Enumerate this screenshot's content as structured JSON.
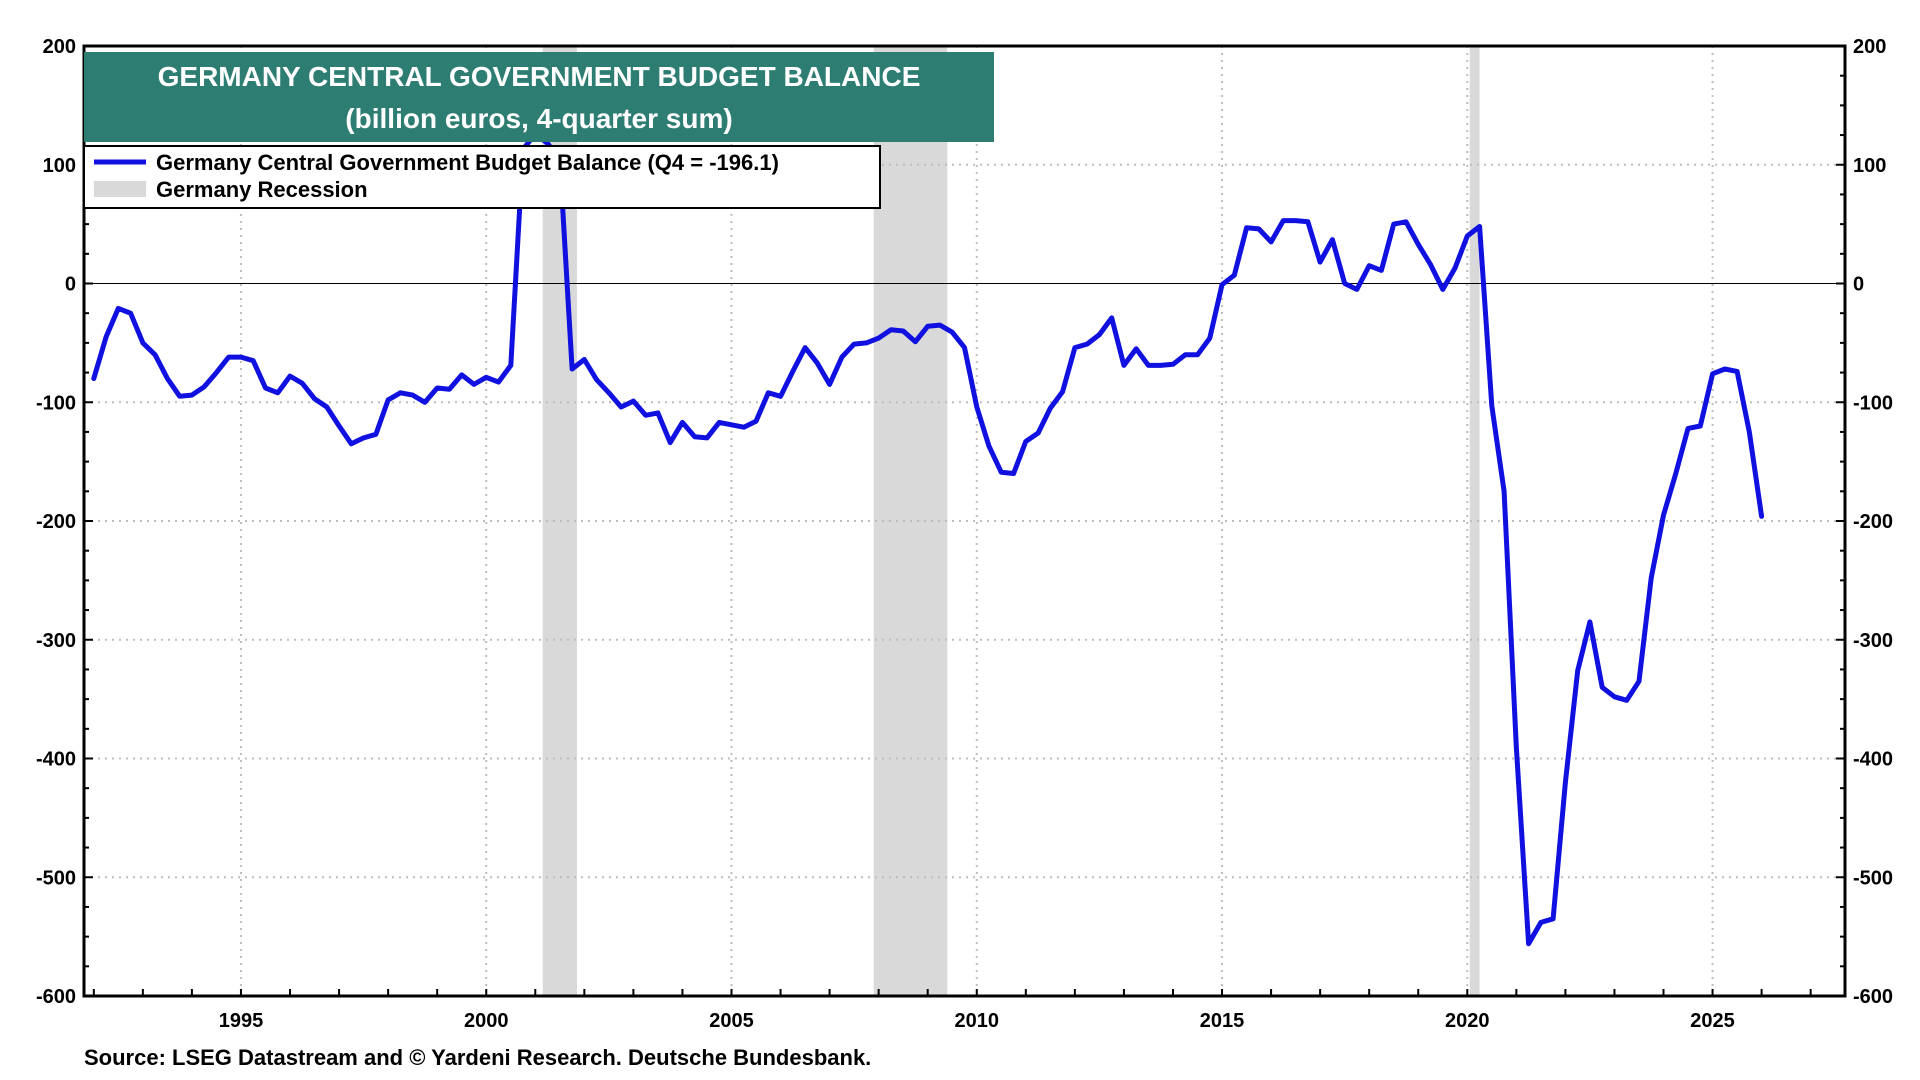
{
  "chart_data": {
    "type": "line",
    "title": "GERMANY CENTRAL GOVERNMENT BUDGET BALANCE",
    "subtitle": "(billion euros, 4-quarter sum)",
    "source": "Source: LSEG Datastream and © Yardeni Research. Deutsche Bundesbank.",
    "ylim": [
      -600,
      200
    ],
    "xlim": [
      1991.8,
      2027.7
    ],
    "y_ticks": [
      "200",
      "100",
      "0",
      "-100",
      "-200",
      "-300",
      "-400",
      "-500",
      "-600"
    ],
    "x_ticks": [
      "1995",
      "2000",
      "2005",
      "2010",
      "2015",
      "2020",
      "2025"
    ],
    "grid": true,
    "legend_position": "top-left",
    "colors": {
      "line": "#1010e0",
      "recession": "#d9d9d9",
      "title_bg": "#2e7d72"
    },
    "legend": {
      "series_label": "Germany Central Government Budget Balance (Q4 = -196.1)",
      "recession_label": "Germany Recession"
    },
    "recessions": [
      [
        2001.15,
        2001.85
      ],
      [
        2007.9,
        2009.4
      ],
      [
        2020.05,
        2020.25
      ]
    ],
    "series": [
      {
        "name": "Germany Central Government Budget Balance (Q4 = -196.1)",
        "x": [
          1992.0,
          1992.25,
          1992.5,
          1992.75,
          1993.0,
          1993.25,
          1993.5,
          1993.75,
          1994.0,
          1994.25,
          1994.5,
          1994.75,
          1995.0,
          1995.25,
          1995.5,
          1995.75,
          1996.0,
          1996.25,
          1996.5,
          1996.75,
          1997.0,
          1997.25,
          1997.5,
          1997.75,
          1998.0,
          1998.25,
          1998.5,
          1998.75,
          1999.0,
          1999.25,
          1999.5,
          1999.75,
          2000.0,
          2000.25,
          2000.5,
          2000.75,
          2001.0,
          2001.25,
          2001.5,
          2001.75,
          2002.0,
          2002.25,
          2002.5,
          2002.75,
          2003.0,
          2003.25,
          2003.5,
          2003.75,
          2004.0,
          2004.25,
          2004.5,
          2004.75,
          2005.0,
          2005.25,
          2005.5,
          2005.75,
          2006.0,
          2006.25,
          2006.5,
          2006.75,
          2007.0,
          2007.25,
          2007.5,
          2007.75,
          2008.0,
          2008.25,
          2008.5,
          2008.75,
          2009.0,
          2009.25,
          2009.5,
          2009.75,
          2010.0,
          2010.25,
          2010.5,
          2010.75,
          2011.0,
          2011.25,
          2011.5,
          2011.75,
          2012.0,
          2012.25,
          2012.5,
          2012.75,
          2013.0,
          2013.25,
          2013.5,
          2013.75,
          2014.0,
          2014.25,
          2014.5,
          2014.75,
          2015.0,
          2015.25,
          2015.5,
          2015.75,
          2016.0,
          2016.25,
          2016.5,
          2016.75,
          2017.0,
          2017.25,
          2017.5,
          2017.75,
          2018.0,
          2018.25,
          2018.5,
          2018.75,
          2019.0,
          2019.25,
          2019.5,
          2019.75,
          2020.0,
          2020.25,
          2020.5,
          2020.75,
          2021.0,
          2021.25,
          2021.5,
          2021.75,
          2022.0,
          2022.25,
          2022.5,
          2022.75,
          2023.0,
          2023.25,
          2023.5,
          2023.75,
          2024.0,
          2024.25,
          2024.5,
          2024.75,
          2025.0,
          2025.25,
          2025.5,
          2025.75,
          2026.0
        ],
        "values": [
          -80,
          -45,
          -21,
          -25,
          -50,
          -60,
          -80,
          -95,
          -94,
          -87,
          -75,
          -62,
          -62,
          -65,
          -88,
          -92,
          -78,
          -84,
          -97,
          -104,
          -120,
          -135,
          -130,
          -127,
          -98,
          -92,
          -94,
          -100,
          -88,
          -89,
          -77,
          -85,
          -79,
          -83,
          -69,
          113,
          126,
          118,
          105,
          -72,
          -64,
          -81,
          -92,
          -104,
          -99,
          -111,
          -109,
          -134,
          -117,
          -129,
          -130,
          -117,
          -119,
          -121,
          -116,
          -92,
          -95,
          -74,
          -54,
          -67,
          -85,
          -62,
          -51,
          -50,
          -46,
          -39,
          -40,
          -49,
          -36,
          -35,
          -41,
          -54,
          -104,
          -137,
          -159,
          -160,
          -133,
          -126,
          -105,
          -91,
          -54,
          -51,
          -43,
          -29,
          -69,
          -55,
          -69,
          -69,
          -68,
          -60,
          -60,
          -46,
          -1,
          7,
          47,
          46,
          35,
          53,
          53,
          52,
          18,
          37,
          0,
          -5,
          15,
          11,
          50,
          52,
          33,
          16,
          -5,
          13,
          40,
          48,
          -103,
          -175,
          -390,
          -556,
          -538,
          -535,
          -420,
          -326,
          -285,
          -340,
          -348,
          -351,
          -335,
          -248,
          -195,
          -160,
          -122,
          -120,
          -76,
          -72,
          -74,
          -125,
          -196.1
        ]
      }
    ]
  }
}
